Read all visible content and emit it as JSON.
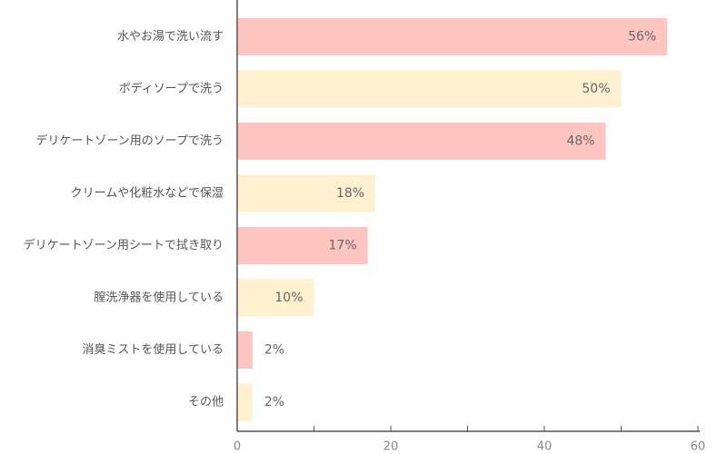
{
  "chart_data": {
    "type": "bar",
    "orientation": "horizontal",
    "categories": [
      "水やお湯で洗い流す",
      "ボディソープで洗う",
      "デリケートゾーン用のソープで洗う",
      "クリームや化粧水などで保湿",
      "デリケートゾーン用シートで拭き取り",
      "膣洗浄器を使用している",
      "消臭ミストを使用している",
      "その他"
    ],
    "values": [
      56,
      50,
      48,
      18,
      17,
      10,
      2,
      2
    ],
    "value_labels": [
      "56%",
      "50%",
      "48%",
      "18%",
      "17%",
      "10%",
      "2%",
      "2%"
    ],
    "xlim": [
      0,
      60
    ],
    "x_ticks": [
      0,
      20,
      40,
      60
    ],
    "x_tick_labels": [
      "0",
      "20",
      "40",
      "60"
    ],
    "bar_colors": [
      "#ffc6c1",
      "#fff1d0"
    ],
    "axis_color": "#555555",
    "grid": false,
    "title": "",
    "xlabel": "",
    "ylabel": ""
  }
}
